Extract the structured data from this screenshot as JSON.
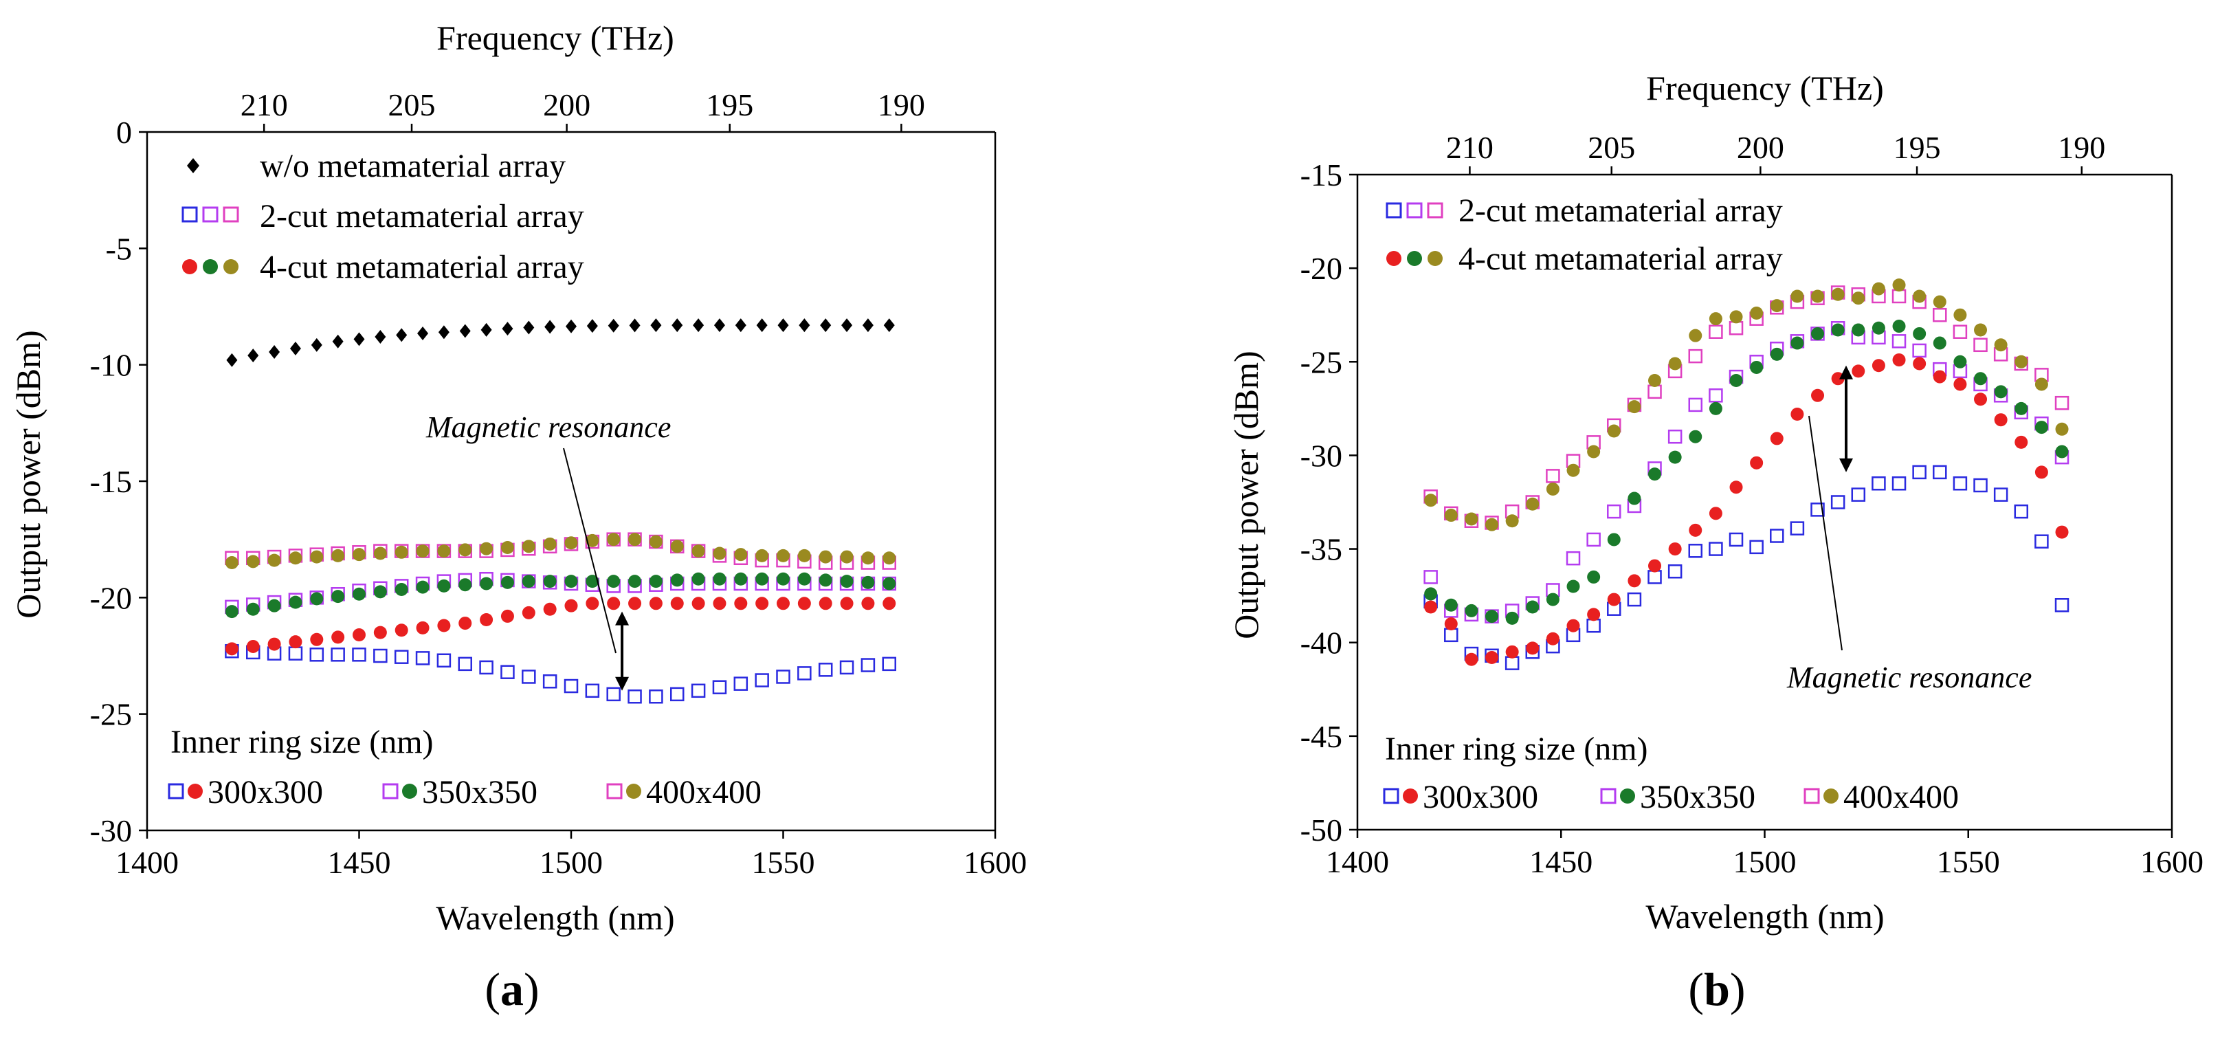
{
  "chart_data": [
    {
      "type": "scatter",
      "panel_label": "a",
      "panel_open": "(",
      "panel_close": ")",
      "xlabel": "Wavelength (nm)",
      "ylabel": "Output power (dBm)",
      "top_xlabel": "Frequency (THz)",
      "xlim": [
        1400,
        1600
      ],
      "ylim": [
        -30,
        0
      ],
      "x_ticks": [
        "1400",
        "1450",
        "1500",
        "1550",
        "1600"
      ],
      "y_ticks": [
        "0",
        "-5",
        "-10",
        "-15",
        "-20",
        "-25",
        "-30"
      ],
      "freq_ticks": [
        "210",
        "205",
        "200",
        "195",
        "190"
      ],
      "legend": {
        "entries": [
          "w/o metamaterial array",
          "2-cut metamaterial array",
          "4-cut metamaterial array"
        ],
        "size_title": "Inner ring size (nm)",
        "sizes": [
          "300x300",
          "350x350",
          "400x400"
        ]
      },
      "annotation": "Magnetic resonance",
      "annotation_arrow": {
        "x": 1512,
        "y_from": -20.6,
        "y_to": -24.0
      },
      "wavelengths": [
        1420,
        1425,
        1430,
        1435,
        1440,
        1445,
        1450,
        1455,
        1460,
        1465,
        1470,
        1475,
        1480,
        1485,
        1490,
        1495,
        1500,
        1505,
        1510,
        1515,
        1520,
        1525,
        1530,
        1535,
        1540,
        1545,
        1550,
        1555,
        1560,
        1565,
        1570,
        1575
      ],
      "series": [
        {
          "name": "w/o metamaterial array",
          "marker": "diamond",
          "color": "#000000",
          "values": [
            -9.8,
            -9.6,
            -9.45,
            -9.3,
            -9.15,
            -9.0,
            -8.9,
            -8.8,
            -8.72,
            -8.65,
            -8.6,
            -8.55,
            -8.5,
            -8.45,
            -8.4,
            -8.37,
            -8.35,
            -8.33,
            -8.32,
            -8.31,
            -8.3,
            -8.3,
            -8.3,
            -8.3,
            -8.3,
            -8.3,
            -8.3,
            -8.3,
            -8.3,
            -8.3,
            -8.3,
            -8.3
          ]
        },
        {
          "name": "2-cut 300x300",
          "marker": "square",
          "color": "#2a2ae0",
          "values": [
            -22.3,
            -22.35,
            -22.4,
            -22.4,
            -22.45,
            -22.45,
            -22.45,
            -22.5,
            -22.55,
            -22.6,
            -22.7,
            -22.85,
            -23.0,
            -23.2,
            -23.4,
            -23.6,
            -23.8,
            -24.0,
            -24.15,
            -24.25,
            -24.25,
            -24.15,
            -24.0,
            -23.85,
            -23.7,
            -23.55,
            -23.4,
            -23.25,
            -23.1,
            -23.0,
            -22.9,
            -22.85
          ]
        },
        {
          "name": "2-cut 350x350",
          "marker": "square",
          "color": "#b43cf0",
          "values": [
            -20.4,
            -20.3,
            -20.2,
            -20.1,
            -20.0,
            -19.85,
            -19.7,
            -19.6,
            -19.5,
            -19.4,
            -19.3,
            -19.25,
            -19.2,
            -19.25,
            -19.3,
            -19.35,
            -19.4,
            -19.45,
            -19.5,
            -19.5,
            -19.45,
            -19.4,
            -19.4,
            -19.4,
            -19.4,
            -19.4,
            -19.4,
            -19.4,
            -19.4,
            -19.4,
            -19.4,
            -19.4
          ]
        },
        {
          "name": "2-cut 400x400",
          "marker": "square",
          "color": "#e040c0",
          "values": [
            -18.3,
            -18.3,
            -18.25,
            -18.2,
            -18.15,
            -18.1,
            -18.05,
            -18.0,
            -18.0,
            -18.0,
            -18.0,
            -18.0,
            -18.0,
            -17.95,
            -17.9,
            -17.8,
            -17.7,
            -17.6,
            -17.5,
            -17.5,
            -17.6,
            -17.8,
            -18.0,
            -18.2,
            -18.3,
            -18.4,
            -18.4,
            -18.45,
            -18.5,
            -18.5,
            -18.5,
            -18.5
          ]
        },
        {
          "name": "4-cut 300x300",
          "marker": "circle",
          "color": "#e82020",
          "values": [
            -22.2,
            -22.1,
            -22.0,
            -21.9,
            -21.8,
            -21.7,
            -21.6,
            -21.5,
            -21.4,
            -21.3,
            -21.2,
            -21.1,
            -20.95,
            -20.8,
            -20.65,
            -20.5,
            -20.35,
            -20.25,
            -20.25,
            -20.25,
            -20.25,
            -20.25,
            -20.25,
            -20.25,
            -20.25,
            -20.25,
            -20.25,
            -20.25,
            -20.25,
            -20.25,
            -20.25,
            -20.25
          ]
        },
        {
          "name": "4-cut 350x350",
          "marker": "circle",
          "color": "#1a7a2a",
          "values": [
            -20.6,
            -20.5,
            -20.35,
            -20.2,
            -20.05,
            -19.95,
            -19.85,
            -19.75,
            -19.65,
            -19.55,
            -19.5,
            -19.45,
            -19.4,
            -19.35,
            -19.3,
            -19.3,
            -19.3,
            -19.3,
            -19.3,
            -19.3,
            -19.3,
            -19.25,
            -19.2,
            -19.2,
            -19.2,
            -19.2,
            -19.2,
            -19.2,
            -19.25,
            -19.3,
            -19.35,
            -19.4
          ]
        },
        {
          "name": "4-cut 400x400",
          "marker": "circle",
          "color": "#9a8a20",
          "values": [
            -18.5,
            -18.45,
            -18.4,
            -18.3,
            -18.25,
            -18.2,
            -18.15,
            -18.1,
            -18.05,
            -18.0,
            -18.0,
            -17.95,
            -17.9,
            -17.85,
            -17.8,
            -17.7,
            -17.65,
            -17.55,
            -17.5,
            -17.5,
            -17.6,
            -17.8,
            -18.0,
            -18.1,
            -18.15,
            -18.2,
            -18.2,
            -18.2,
            -18.25,
            -18.25,
            -18.3,
            -18.3
          ]
        }
      ]
    },
    {
      "type": "scatter",
      "panel_label": "b",
      "panel_open": "(",
      "panel_close": ")",
      "xlabel": "Wavelength (nm)",
      "ylabel": "Output power (dBm)",
      "top_xlabel": "Frequency (THz)",
      "xlim": [
        1400,
        1600
      ],
      "ylim": [
        -50,
        -15
      ],
      "x_ticks": [
        "1400",
        "1450",
        "1500",
        "1550",
        "1600"
      ],
      "y_ticks": [
        "-15",
        "-20",
        "-25",
        "-30",
        "-35",
        "-40",
        "-45",
        "-50"
      ],
      "freq_ticks": [
        "210",
        "205",
        "200",
        "195",
        "190"
      ],
      "legend": {
        "entries": [
          "2-cut metamaterial array",
          "4-cut metamaterial array"
        ],
        "size_title": "Inner ring size (nm)",
        "sizes": [
          "300x300",
          "350x350",
          "400x400"
        ]
      },
      "annotation": "Magnetic resonance",
      "annotation_arrow": {
        "x": 1520,
        "y_from": -25.2,
        "y_to": -30.9
      },
      "wavelengths": [
        1418,
        1423,
        1428,
        1433,
        1438,
        1443,
        1448,
        1453,
        1458,
        1463,
        1468,
        1473,
        1478,
        1483,
        1488,
        1493,
        1498,
        1503,
        1508,
        1513,
        1518,
        1523,
        1528,
        1533,
        1538,
        1543,
        1548,
        1553,
        1558,
        1563,
        1568,
        1573
      ],
      "series": [
        {
          "name": "2-cut 300x300",
          "marker": "square",
          "color": "#2a2ae0",
          "values": [
            -37.8,
            -39.6,
            -40.6,
            -40.7,
            -41.1,
            -40.5,
            -40.2,
            -39.6,
            -39.1,
            -38.2,
            -37.7,
            -36.5,
            -36.2,
            -35.1,
            -35.0,
            -34.5,
            -34.9,
            -34.3,
            -33.9,
            -32.9,
            -32.5,
            -32.1,
            -31.5,
            -31.5,
            -30.9,
            -30.9,
            -31.5,
            -31.6,
            -32.1,
            -33.0,
            -34.6,
            -38.0
          ]
        },
        {
          "name": "2-cut 350x350",
          "marker": "square",
          "color": "#b43cf0",
          "values": [
            -36.5,
            -38.3,
            -38.5,
            -38.6,
            -38.3,
            -37.9,
            -37.2,
            -35.5,
            -34.5,
            -33.0,
            -32.7,
            -30.7,
            -29.0,
            -27.3,
            -26.8,
            -25.8,
            -25.0,
            -24.3,
            -23.9,
            -23.5,
            -23.2,
            -23.7,
            -23.7,
            -23.9,
            -24.4,
            -25.4,
            -25.5,
            -26.2,
            -26.8,
            -27.7,
            -28.3,
            -30.1
          ]
        },
        {
          "name": "2-cut 400x400",
          "marker": "square",
          "color": "#e040c0",
          "values": [
            -32.2,
            -33.1,
            -33.5,
            -33.6,
            -33.0,
            -32.5,
            -31.1,
            -30.3,
            -29.3,
            -28.4,
            -27.3,
            -26.6,
            -25.5,
            -24.7,
            -23.4,
            -23.2,
            -22.7,
            -22.1,
            -21.8,
            -21.6,
            -21.3,
            -21.4,
            -21.5,
            -21.5,
            -21.8,
            -22.5,
            -23.4,
            -24.1,
            -24.6,
            -25.1,
            -25.7,
            -27.2
          ]
        },
        {
          "name": "4-cut 300x300",
          "marker": "circle",
          "color": "#e82020",
          "values": [
            -38.1,
            -39.0,
            -40.9,
            -40.8,
            -40.5,
            -40.3,
            -39.8,
            -39.1,
            -38.5,
            -37.7,
            -36.7,
            -35.9,
            -35.0,
            -34.0,
            -33.1,
            -31.7,
            -30.4,
            -29.1,
            -27.8,
            -26.8,
            -25.9,
            -25.5,
            -25.2,
            -24.9,
            -25.1,
            -25.8,
            -26.2,
            -27.0,
            -28.1,
            -29.3,
            -30.9,
            -34.1
          ]
        },
        {
          "name": "4-cut 350x350",
          "marker": "circle",
          "color": "#1a7a2a",
          "values": [
            -37.4,
            -38.0,
            -38.3,
            -38.6,
            -38.7,
            -38.1,
            -37.7,
            -37.0,
            -36.5,
            -34.5,
            -32.3,
            -31.0,
            -30.1,
            -29.0,
            -27.5,
            -26.0,
            -25.3,
            -24.6,
            -24.0,
            -23.5,
            -23.3,
            -23.3,
            -23.2,
            -23.1,
            -23.5,
            -24.0,
            -25.0,
            -25.9,
            -26.6,
            -27.5,
            -28.5,
            -29.8
          ]
        },
        {
          "name": "4-cut 400x400",
          "marker": "circle",
          "color": "#9a8a20",
          "values": [
            -32.4,
            -33.2,
            -33.4,
            -33.7,
            -33.5,
            -32.6,
            -31.8,
            -30.8,
            -29.8,
            -28.7,
            -27.4,
            -26.0,
            -25.1,
            -23.6,
            -22.7,
            -22.6,
            -22.4,
            -22.0,
            -21.5,
            -21.5,
            -21.4,
            -21.6,
            -21.1,
            -20.9,
            -21.5,
            -21.8,
            -22.5,
            -23.3,
            -24.1,
            -25.0,
            -26.2,
            -28.6
          ]
        }
      ]
    }
  ]
}
